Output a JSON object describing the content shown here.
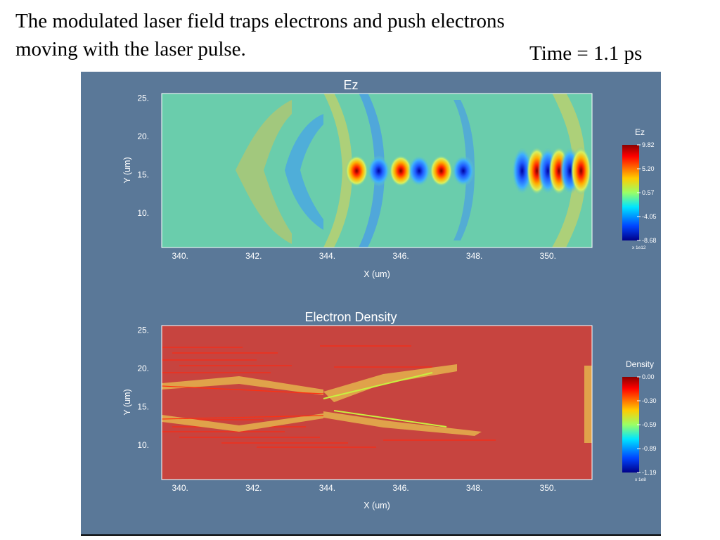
{
  "slide": {
    "caption_line1": "The modulated laser field traps electrons and push electrons",
    "caption_line2": "moving with the laser pulse.",
    "time_label": "Time = 1.1 ps"
  },
  "colors": {
    "panel_bg": "#5a7898",
    "ez_background": "#6acdac",
    "density_background": "#c7443f"
  },
  "plots": [
    {
      "id": "ez",
      "title": "Ez",
      "xlabel": "X (um)",
      "ylabel": "Y (um)",
      "xticks": [
        "340.",
        "342.",
        "344.",
        "346.",
        "348.",
        "350."
      ],
      "yticks": [
        "25.",
        "20.",
        "15.",
        "10."
      ],
      "colorbar": {
        "title": "Ez",
        "ticks": [
          "9.82",
          "5.20",
          "0.57",
          "-4.05",
          "-8.68"
        ],
        "scale": "x 1e12"
      }
    },
    {
      "id": "density",
      "title": "Electron Density",
      "xlabel": "X (um)",
      "ylabel": "Y (um)",
      "xticks": [
        "340.",
        "342.",
        "344.",
        "346.",
        "348.",
        "350."
      ],
      "yticks": [
        "25.",
        "20.",
        "15.",
        "10."
      ],
      "colorbar": {
        "title": "Density",
        "ticks": [
          "0.00",
          "-0.30",
          "-0.59",
          "-0.89",
          "-1.19"
        ],
        "scale": "x 1e8"
      }
    }
  ],
  "chart_data": [
    {
      "type": "heatmap",
      "title": "Ez",
      "xlabel": "X (um)",
      "ylabel": "Y (um)",
      "xlim": [
        339.5,
        351.2
      ],
      "ylim": [
        5.5,
        25.6
      ],
      "colorbar_range": [
        -8.68,
        9.82
      ],
      "colorbar_scale": "1e12",
      "lobes": [
        {
          "x": 344.8,
          "y": 15.5,
          "sign": "positive"
        },
        {
          "x": 345.4,
          "y": 15.5,
          "sign": "negative"
        },
        {
          "x": 346.0,
          "y": 15.5,
          "sign": "positive"
        },
        {
          "x": 346.5,
          "y": 15.5,
          "sign": "negative"
        },
        {
          "x": 347.1,
          "y": 15.5,
          "sign": "positive"
        },
        {
          "x": 347.7,
          "y": 15.5,
          "sign": "negative"
        },
        {
          "x": 349.3,
          "y": 15.5,
          "sign": "negative"
        },
        {
          "x": 349.7,
          "y": 15.5,
          "sign": "positive"
        },
        {
          "x": 350.0,
          "y": 15.5,
          "sign": "negative"
        },
        {
          "x": 350.3,
          "y": 15.5,
          "sign": "positive"
        },
        {
          "x": 350.6,
          "y": 15.5,
          "sign": "negative"
        },
        {
          "x": 350.9,
          "y": 15.5,
          "sign": "positive"
        }
      ]
    },
    {
      "type": "heatmap",
      "title": "Electron Density",
      "xlabel": "X (um)",
      "ylabel": "Y (um)",
      "xlim": [
        339.5,
        351.2
      ],
      "ylim": [
        5.5,
        25.6
      ],
      "colorbar_range": [
        -1.19,
        0.0
      ],
      "colorbar_scale": "1e8",
      "bands": [
        {
          "from": [
            339.5,
            17.5
          ],
          "to": [
            344.8,
            15.0
          ]
        },
        {
          "from": [
            344.2,
            17.3
          ],
          "to": [
            347.5,
            19.7
          ]
        },
        {
          "from": [
            339.5,
            13.0
          ],
          "to": [
            344.8,
            15.3
          ]
        },
        {
          "from": [
            344.2,
            13.3
          ],
          "to": [
            348.3,
            11.0
          ]
        }
      ]
    }
  ]
}
